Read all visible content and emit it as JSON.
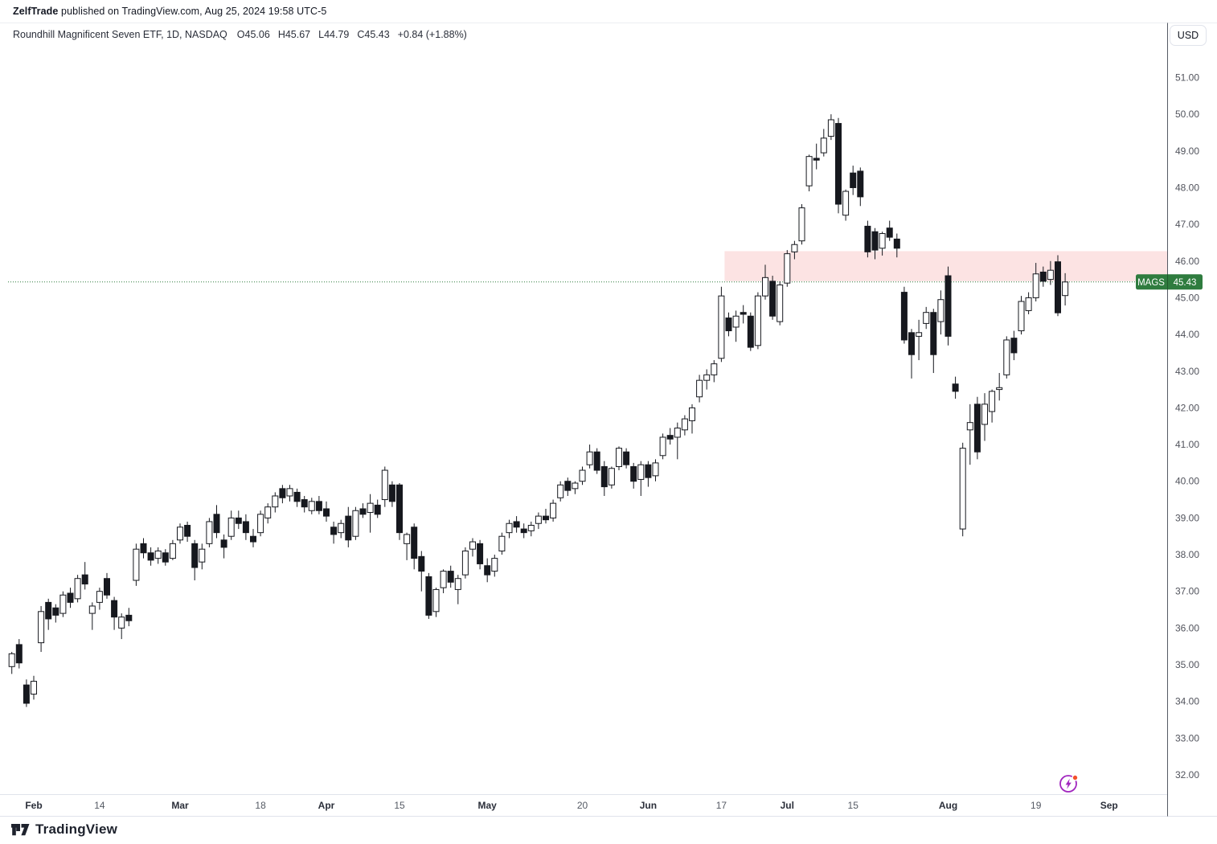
{
  "attribution": {
    "author": "ZelfTrade",
    "rest": " published on TradingView.com, Aug 25, 2024 19:58 UTC-5"
  },
  "legend": {
    "symbol_title": "Roundhill Magnificent Seven ETF, 1D, NASDAQ",
    "open": "O45.06",
    "high": "H45.67",
    "low": "L44.79",
    "close": "C45.43",
    "change": "+0.84 (+1.88%)"
  },
  "axis": {
    "currency_button": "USD"
  },
  "price_label": {
    "symbol": "MAGS",
    "price": "45.43",
    "color": "#2F7C3F"
  },
  "footer": {
    "brand": "TradingView"
  },
  "icons": {
    "bottom_right": "boost-lightning-icon",
    "logo": "tradingview-logo"
  },
  "chart_data": {
    "type": "candlestick",
    "title": "Roundhill Magnificent Seven ETF, 1D, NASDAQ",
    "symbol": "MAGS",
    "interval": "1D",
    "currency": "USD",
    "ylim": [
      31.6,
      51.6
    ],
    "grid": false,
    "last_price": 45.43,
    "up_fill": "#ffffff",
    "down_fill": "#16181e",
    "candle_border": "#16181e",
    "price_line_color": "#2F7C3F",
    "y_ticks": [
      32,
      33,
      34,
      35,
      36,
      37,
      38,
      39,
      40,
      41,
      42,
      43,
      44,
      45,
      46,
      47,
      48,
      49,
      50,
      51
    ],
    "x_ticks": [
      [
        "Feb",
        3,
        1
      ],
      [
        "14",
        12,
        0
      ],
      [
        "Mar",
        23,
        1
      ],
      [
        "18",
        34,
        0
      ],
      [
        "Apr",
        43,
        1
      ],
      [
        "15",
        53,
        0
      ],
      [
        "May",
        65,
        1
      ],
      [
        "20",
        78,
        0
      ],
      [
        "Jun",
        87,
        1
      ],
      [
        "17",
        97,
        0
      ],
      [
        "Jul",
        106,
        1
      ],
      [
        "15",
        115,
        0
      ],
      [
        "Aug",
        128,
        1
      ],
      [
        "19",
        140,
        0
      ],
      [
        "Sep",
        150,
        1
      ]
    ],
    "zone": {
      "label": "supply-zone",
      "start_candle": 97,
      "price_top": 46.27,
      "price_bottom": 45.45,
      "color": "rgba(239,83,80,0.16)"
    },
    "candles": [
      [
        "Jan 29",
        34.95,
        35.35,
        34.75,
        35.3
      ],
      [
        "Jan 30",
        35.55,
        35.7,
        34.9,
        35.05
      ],
      [
        "Jan 31",
        34.45,
        34.6,
        33.85,
        33.95
      ],
      [
        "Feb 1",
        34.2,
        34.7,
        34.05,
        34.55
      ],
      [
        "Feb 2",
        35.6,
        36.6,
        35.35,
        36.45
      ],
      [
        "Feb 5",
        36.7,
        36.8,
        35.95,
        36.25
      ],
      [
        "Feb 6",
        36.55,
        36.65,
        36.15,
        36.35
      ],
      [
        "Feb 7",
        36.4,
        37.0,
        36.3,
        36.9
      ],
      [
        "Feb 8",
        36.95,
        37.1,
        36.55,
        36.7
      ],
      [
        "Feb 9",
        36.8,
        37.45,
        36.7,
        37.35
      ],
      [
        "Feb 12",
        37.45,
        37.8,
        37.05,
        37.2
      ],
      [
        "Feb 13",
        36.4,
        36.7,
        35.95,
        36.6
      ],
      [
        "Feb 14",
        36.7,
        37.1,
        36.5,
        37.0
      ],
      [
        "Feb 15",
        37.35,
        37.5,
        36.8,
        36.9
      ],
      [
        "Feb 16",
        36.75,
        36.85,
        35.95,
        36.3
      ],
      [
        "Feb 20",
        36.0,
        36.4,
        35.7,
        36.3
      ],
      [
        "Feb 21",
        36.35,
        36.55,
        36.05,
        36.2
      ],
      [
        "Feb 22",
        37.3,
        38.3,
        37.15,
        38.15
      ],
      [
        "Feb 23",
        38.3,
        38.45,
        37.9,
        38.05
      ],
      [
        "Feb 26",
        38.05,
        38.2,
        37.7,
        37.85
      ],
      [
        "Feb 27",
        37.9,
        38.2,
        37.75,
        38.1
      ],
      [
        "Feb 28",
        38.05,
        38.15,
        37.7,
        37.8
      ],
      [
        "Feb 29",
        37.9,
        38.4,
        37.85,
        38.3
      ],
      [
        "Mar 1",
        38.4,
        38.85,
        38.3,
        38.75
      ],
      [
        "Mar 4",
        38.8,
        38.9,
        38.35,
        38.5
      ],
      [
        "Mar 5",
        38.3,
        38.4,
        37.3,
        37.65
      ],
      [
        "Mar 6",
        37.8,
        38.3,
        37.6,
        38.15
      ],
      [
        "Mar 7",
        38.3,
        39.0,
        38.2,
        38.9
      ],
      [
        "Mar 8",
        39.1,
        39.35,
        38.45,
        38.6
      ],
      [
        "Mar 11",
        38.4,
        38.55,
        37.9,
        38.2
      ],
      [
        "Mar 12",
        38.5,
        39.2,
        38.4,
        39.0
      ],
      [
        "Mar 13",
        39.0,
        39.2,
        38.7,
        38.85
      ],
      [
        "Mar 14",
        38.9,
        39.1,
        38.4,
        38.6
      ],
      [
        "Mar 15",
        38.5,
        38.7,
        38.2,
        38.35
      ],
      [
        "Mar 18",
        38.6,
        39.2,
        38.5,
        39.1
      ],
      [
        "Mar 19",
        39.0,
        39.4,
        38.85,
        39.3
      ],
      [
        "Mar 20",
        39.3,
        39.7,
        39.15,
        39.6
      ],
      [
        "Mar 21",
        39.8,
        39.9,
        39.4,
        39.55
      ],
      [
        "Mar 22",
        39.6,
        39.9,
        39.45,
        39.8
      ],
      [
        "Mar 25",
        39.7,
        39.8,
        39.3,
        39.45
      ],
      [
        "Mar 26",
        39.5,
        39.6,
        39.15,
        39.3
      ],
      [
        "Mar 27",
        39.2,
        39.55,
        39.1,
        39.45
      ],
      [
        "Mar 28",
        39.45,
        39.6,
        39.1,
        39.2
      ],
      [
        "Apr 1",
        39.25,
        39.45,
        38.9,
        39.05
      ],
      [
        "Apr 2",
        38.75,
        38.9,
        38.3,
        38.55
      ],
      [
        "Apr 3",
        38.6,
        38.95,
        38.45,
        38.85
      ],
      [
        "Apr 4",
        39.05,
        39.3,
        38.2,
        38.4
      ],
      [
        "Apr 5",
        38.5,
        39.3,
        38.4,
        39.2
      ],
      [
        "Apr 8",
        39.25,
        39.4,
        39.0,
        39.1
      ],
      [
        "Apr 9",
        39.15,
        39.65,
        38.6,
        39.4
      ],
      [
        "Apr 10",
        39.35,
        39.5,
        39.0,
        39.1
      ],
      [
        "Apr 11",
        39.5,
        40.4,
        39.3,
        40.3
      ],
      [
        "Apr 12",
        39.9,
        40.0,
        39.3,
        39.45
      ],
      [
        "Apr 15",
        39.9,
        39.95,
        38.4,
        38.6
      ],
      [
        "Apr 16",
        38.3,
        38.6,
        37.85,
        38.55
      ],
      [
        "Apr 17",
        38.75,
        38.85,
        37.6,
        37.9
      ],
      [
        "Apr 18",
        37.95,
        38.1,
        37.0,
        37.55
      ],
      [
        "Apr 19",
        37.4,
        37.5,
        36.25,
        36.35
      ],
      [
        "Apr 22",
        36.45,
        37.1,
        36.3,
        37.05
      ],
      [
        "Apr 23",
        37.1,
        37.6,
        36.95,
        37.55
      ],
      [
        "Apr 24",
        37.55,
        37.7,
        37.1,
        37.25
      ],
      [
        "Apr 25",
        37.05,
        37.45,
        36.65,
        37.35
      ],
      [
        "Apr 26",
        37.45,
        38.2,
        37.35,
        38.1
      ],
      [
        "Apr 29",
        38.15,
        38.45,
        37.95,
        38.35
      ],
      [
        "Apr 30",
        38.3,
        38.4,
        37.6,
        37.75
      ],
      [
        "May 1",
        37.7,
        37.9,
        37.25,
        37.45
      ],
      [
        "May 2",
        37.55,
        38.0,
        37.4,
        37.9
      ],
      [
        "May 3",
        38.1,
        38.6,
        38.0,
        38.5
      ],
      [
        "May 6",
        38.6,
        38.95,
        38.45,
        38.85
      ],
      [
        "May 7",
        38.9,
        39.05,
        38.6,
        38.75
      ],
      [
        "May 8",
        38.7,
        38.85,
        38.45,
        38.6
      ],
      [
        "May 9",
        38.65,
        38.9,
        38.5,
        38.8
      ],
      [
        "May 10",
        38.85,
        39.15,
        38.7,
        39.05
      ],
      [
        "May 13",
        39.05,
        39.25,
        38.85,
        38.95
      ],
      [
        "May 14",
        39.0,
        39.5,
        38.9,
        39.4
      ],
      [
        "May 15",
        39.55,
        40.0,
        39.45,
        39.9
      ],
      [
        "May 16",
        40.0,
        40.1,
        39.6,
        39.75
      ],
      [
        "May 17",
        39.8,
        40.0,
        39.65,
        39.95
      ],
      [
        "May 20",
        40.0,
        40.4,
        39.9,
        40.3
      ],
      [
        "May 21",
        40.45,
        41.0,
        40.35,
        40.8
      ],
      [
        "May 22",
        40.8,
        40.9,
        40.2,
        40.3
      ],
      [
        "May 23",
        40.4,
        40.55,
        39.6,
        39.85
      ],
      [
        "May 24",
        39.9,
        40.4,
        39.8,
        40.35
      ],
      [
        "May 28",
        40.4,
        40.95,
        40.3,
        40.9
      ],
      [
        "May 29",
        40.8,
        40.9,
        40.35,
        40.45
      ],
      [
        "May 30",
        40.4,
        40.5,
        39.8,
        40.0
      ],
      [
        "May 31",
        40.05,
        40.55,
        39.6,
        40.45
      ],
      [
        "Jun 3",
        40.45,
        40.55,
        39.85,
        40.1
      ],
      [
        "Jun 4",
        40.15,
        40.6,
        40.0,
        40.5
      ],
      [
        "Jun 5",
        40.7,
        41.3,
        40.6,
        41.2
      ],
      [
        "Jun 6",
        41.25,
        41.45,
        41.0,
        41.15
      ],
      [
        "Jun 7",
        41.2,
        41.6,
        40.6,
        41.45
      ],
      [
        "Jun 10",
        41.4,
        41.8,
        41.25,
        41.7
      ],
      [
        "Jun 11",
        41.65,
        42.1,
        41.3,
        42.0
      ],
      [
        "Jun 12",
        42.3,
        42.9,
        42.15,
        42.75
      ],
      [
        "Jun 13",
        42.75,
        43.05,
        42.5,
        42.9
      ],
      [
        "Jun 14",
        42.9,
        43.3,
        42.7,
        43.2
      ],
      [
        "Jun 17",
        43.35,
        45.3,
        43.25,
        45.05
      ],
      [
        "Jun 18",
        44.45,
        44.6,
        43.95,
        44.1
      ],
      [
        "Jun 20",
        44.2,
        44.65,
        43.8,
        44.5
      ],
      [
        "Jun 21",
        44.6,
        44.8,
        44.3,
        44.55
      ],
      [
        "Jun 24",
        44.5,
        44.6,
        43.55,
        43.65
      ],
      [
        "Jun 25",
        43.7,
        45.15,
        43.6,
        45.05
      ],
      [
        "Jun 26",
        45.05,
        45.9,
        44.95,
        45.55
      ],
      [
        "Jun 27",
        45.45,
        45.6,
        44.4,
        44.5
      ],
      [
        "Jun 28",
        44.35,
        45.45,
        44.25,
        45.35
      ],
      [
        "Jul 1",
        45.4,
        46.3,
        45.3,
        46.2
      ],
      [
        "Jul 2",
        46.25,
        46.55,
        46.05,
        46.45
      ],
      [
        "Jul 3",
        46.55,
        47.55,
        46.45,
        47.45
      ],
      [
        "Jul 5",
        48.05,
        48.9,
        47.9,
        48.85
      ],
      [
        "Jul 8",
        48.8,
        49.2,
        48.5,
        48.75
      ],
      [
        "Jul 9",
        48.95,
        49.6,
        48.85,
        49.35
      ],
      [
        "Jul 10",
        49.4,
        50.0,
        49.3,
        49.85
      ],
      [
        "Jul 11",
        49.75,
        49.9,
        47.3,
        47.55
      ],
      [
        "Jul 12",
        47.25,
        47.95,
        47.1,
        47.9
      ],
      [
        "Jul 15",
        48.4,
        48.6,
        47.8,
        48.0
      ],
      [
        "Jul 16",
        48.45,
        48.55,
        47.5,
        47.75
      ],
      [
        "Jul 17",
        46.95,
        47.1,
        46.1,
        46.25
      ],
      [
        "Jul 18",
        46.8,
        46.9,
        46.05,
        46.3
      ],
      [
        "Jul 19",
        46.35,
        46.8,
        46.15,
        46.75
      ],
      [
        "Jul 22",
        46.9,
        47.1,
        46.55,
        46.65
      ],
      [
        "Jul 23",
        46.6,
        46.75,
        46.1,
        46.35
      ],
      [
        "Jul 24",
        45.15,
        45.3,
        43.75,
        43.85
      ],
      [
        "Jul 25",
        44.05,
        44.15,
        42.8,
        43.45
      ],
      [
        "Jul 26",
        43.95,
        44.4,
        43.3,
        44.05
      ],
      [
        "Jul 29",
        44.3,
        44.75,
        44.15,
        44.6
      ],
      [
        "Jul 30",
        44.6,
        44.7,
        42.95,
        43.45
      ],
      [
        "Jul 31",
        44.35,
        45.2,
        44.0,
        44.95
      ],
      [
        "Aug 1",
        45.6,
        45.85,
        43.7,
        43.95
      ],
      [
        "Aug 2",
        42.65,
        42.85,
        42.25,
        42.45
      ],
      [
        "Aug 5",
        38.7,
        41.05,
        38.5,
        40.9
      ],
      [
        "Aug 6",
        41.4,
        42.1,
        40.45,
        41.6
      ],
      [
        "Aug 7",
        42.1,
        42.3,
        40.6,
        40.8
      ],
      [
        "Aug 8",
        41.55,
        42.4,
        41.1,
        42.1
      ],
      [
        "Aug 9",
        41.9,
        42.5,
        41.6,
        42.45
      ],
      [
        "Aug 12",
        42.5,
        42.95,
        42.2,
        42.55
      ],
      [
        "Aug 13",
        42.9,
        43.95,
        42.8,
        43.85
      ],
      [
        "Aug 14",
        43.9,
        44.1,
        43.3,
        43.5
      ],
      [
        "Aug 15",
        44.1,
        45.05,
        44.0,
        44.9
      ],
      [
        "Aug 16",
        44.65,
        45.15,
        44.55,
        45.0
      ],
      [
        "Aug 19",
        45.0,
        45.95,
        44.9,
        45.65
      ],
      [
        "Aug 20",
        45.7,
        45.85,
        45.3,
        45.45
      ],
      [
        "Aug 21",
        45.5,
        46.0,
        45.35,
        45.75
      ],
      [
        "Aug 22",
        45.98,
        46.16,
        44.5,
        44.59
      ],
      [
        "Aug 23",
        45.06,
        45.67,
        44.79,
        45.43
      ]
    ]
  }
}
